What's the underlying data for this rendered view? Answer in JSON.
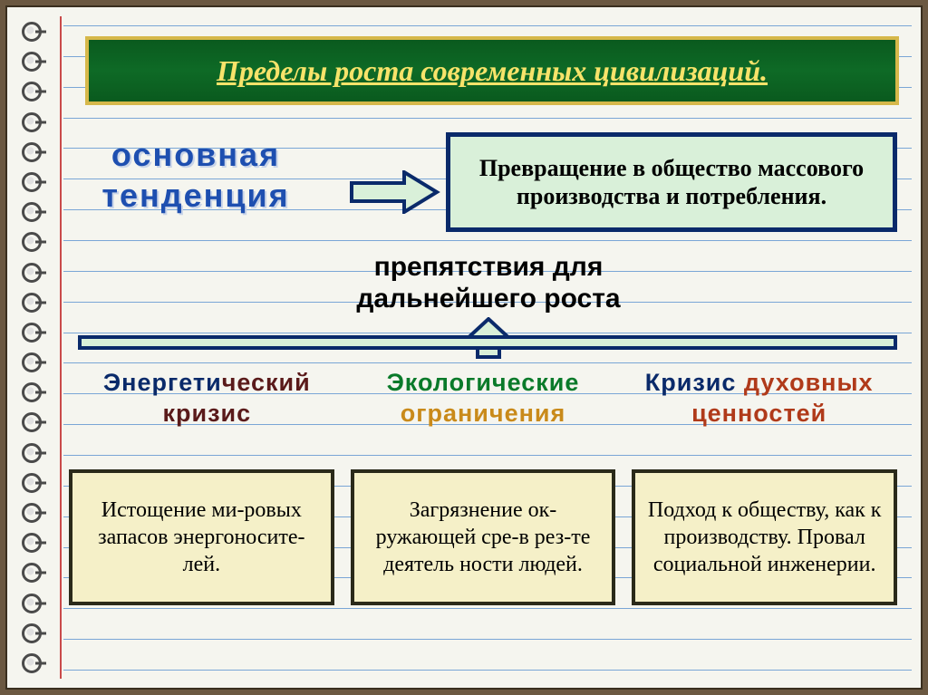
{
  "title": "Пределы роста современных цивилизаций.",
  "main_trend_line1": "основная",
  "main_trend_line2": "тенденция",
  "top_box": "Превращение в общество массового производства  и потребления.",
  "obstacle_line1": "препятствия для",
  "obstacle_line2": "дальнейшего роста",
  "categories": [
    {
      "word1": "Энергети",
      "word1b": "ческий",
      "word2": "кризис"
    },
    {
      "word1": "Экологические",
      "word2": "ограничения"
    },
    {
      "word1a": "Кризис",
      "word1b": "духовных",
      "word2": "ценностей"
    }
  ],
  "bottom_boxes": [
    "Истощение ми-ровых запасов энергоносите-лей.",
    "Загрязнение ок-ружающей сре-в рез-те деятель ности людей.",
    "Подход к обществу, как к производству. Провал социальной инженерии."
  ],
  "colors": {
    "frame_bg": "#6b5841",
    "page_bg": "#f5f5ef",
    "title_bg": "#0e6a26",
    "title_border": "#d6b84a",
    "title_text": "#f7e36a",
    "nav_blue": "#0a2a6a",
    "light_green": "#d9f0d9",
    "light_yellow": "#f5f0c8",
    "dark_box_border": "#2a2a1a"
  },
  "ring_count": 22,
  "blue_line_count": 22,
  "arrow": {
    "fill": "#d9f0d9",
    "stroke": "#0a2a6a",
    "stroke_width": 4
  }
}
